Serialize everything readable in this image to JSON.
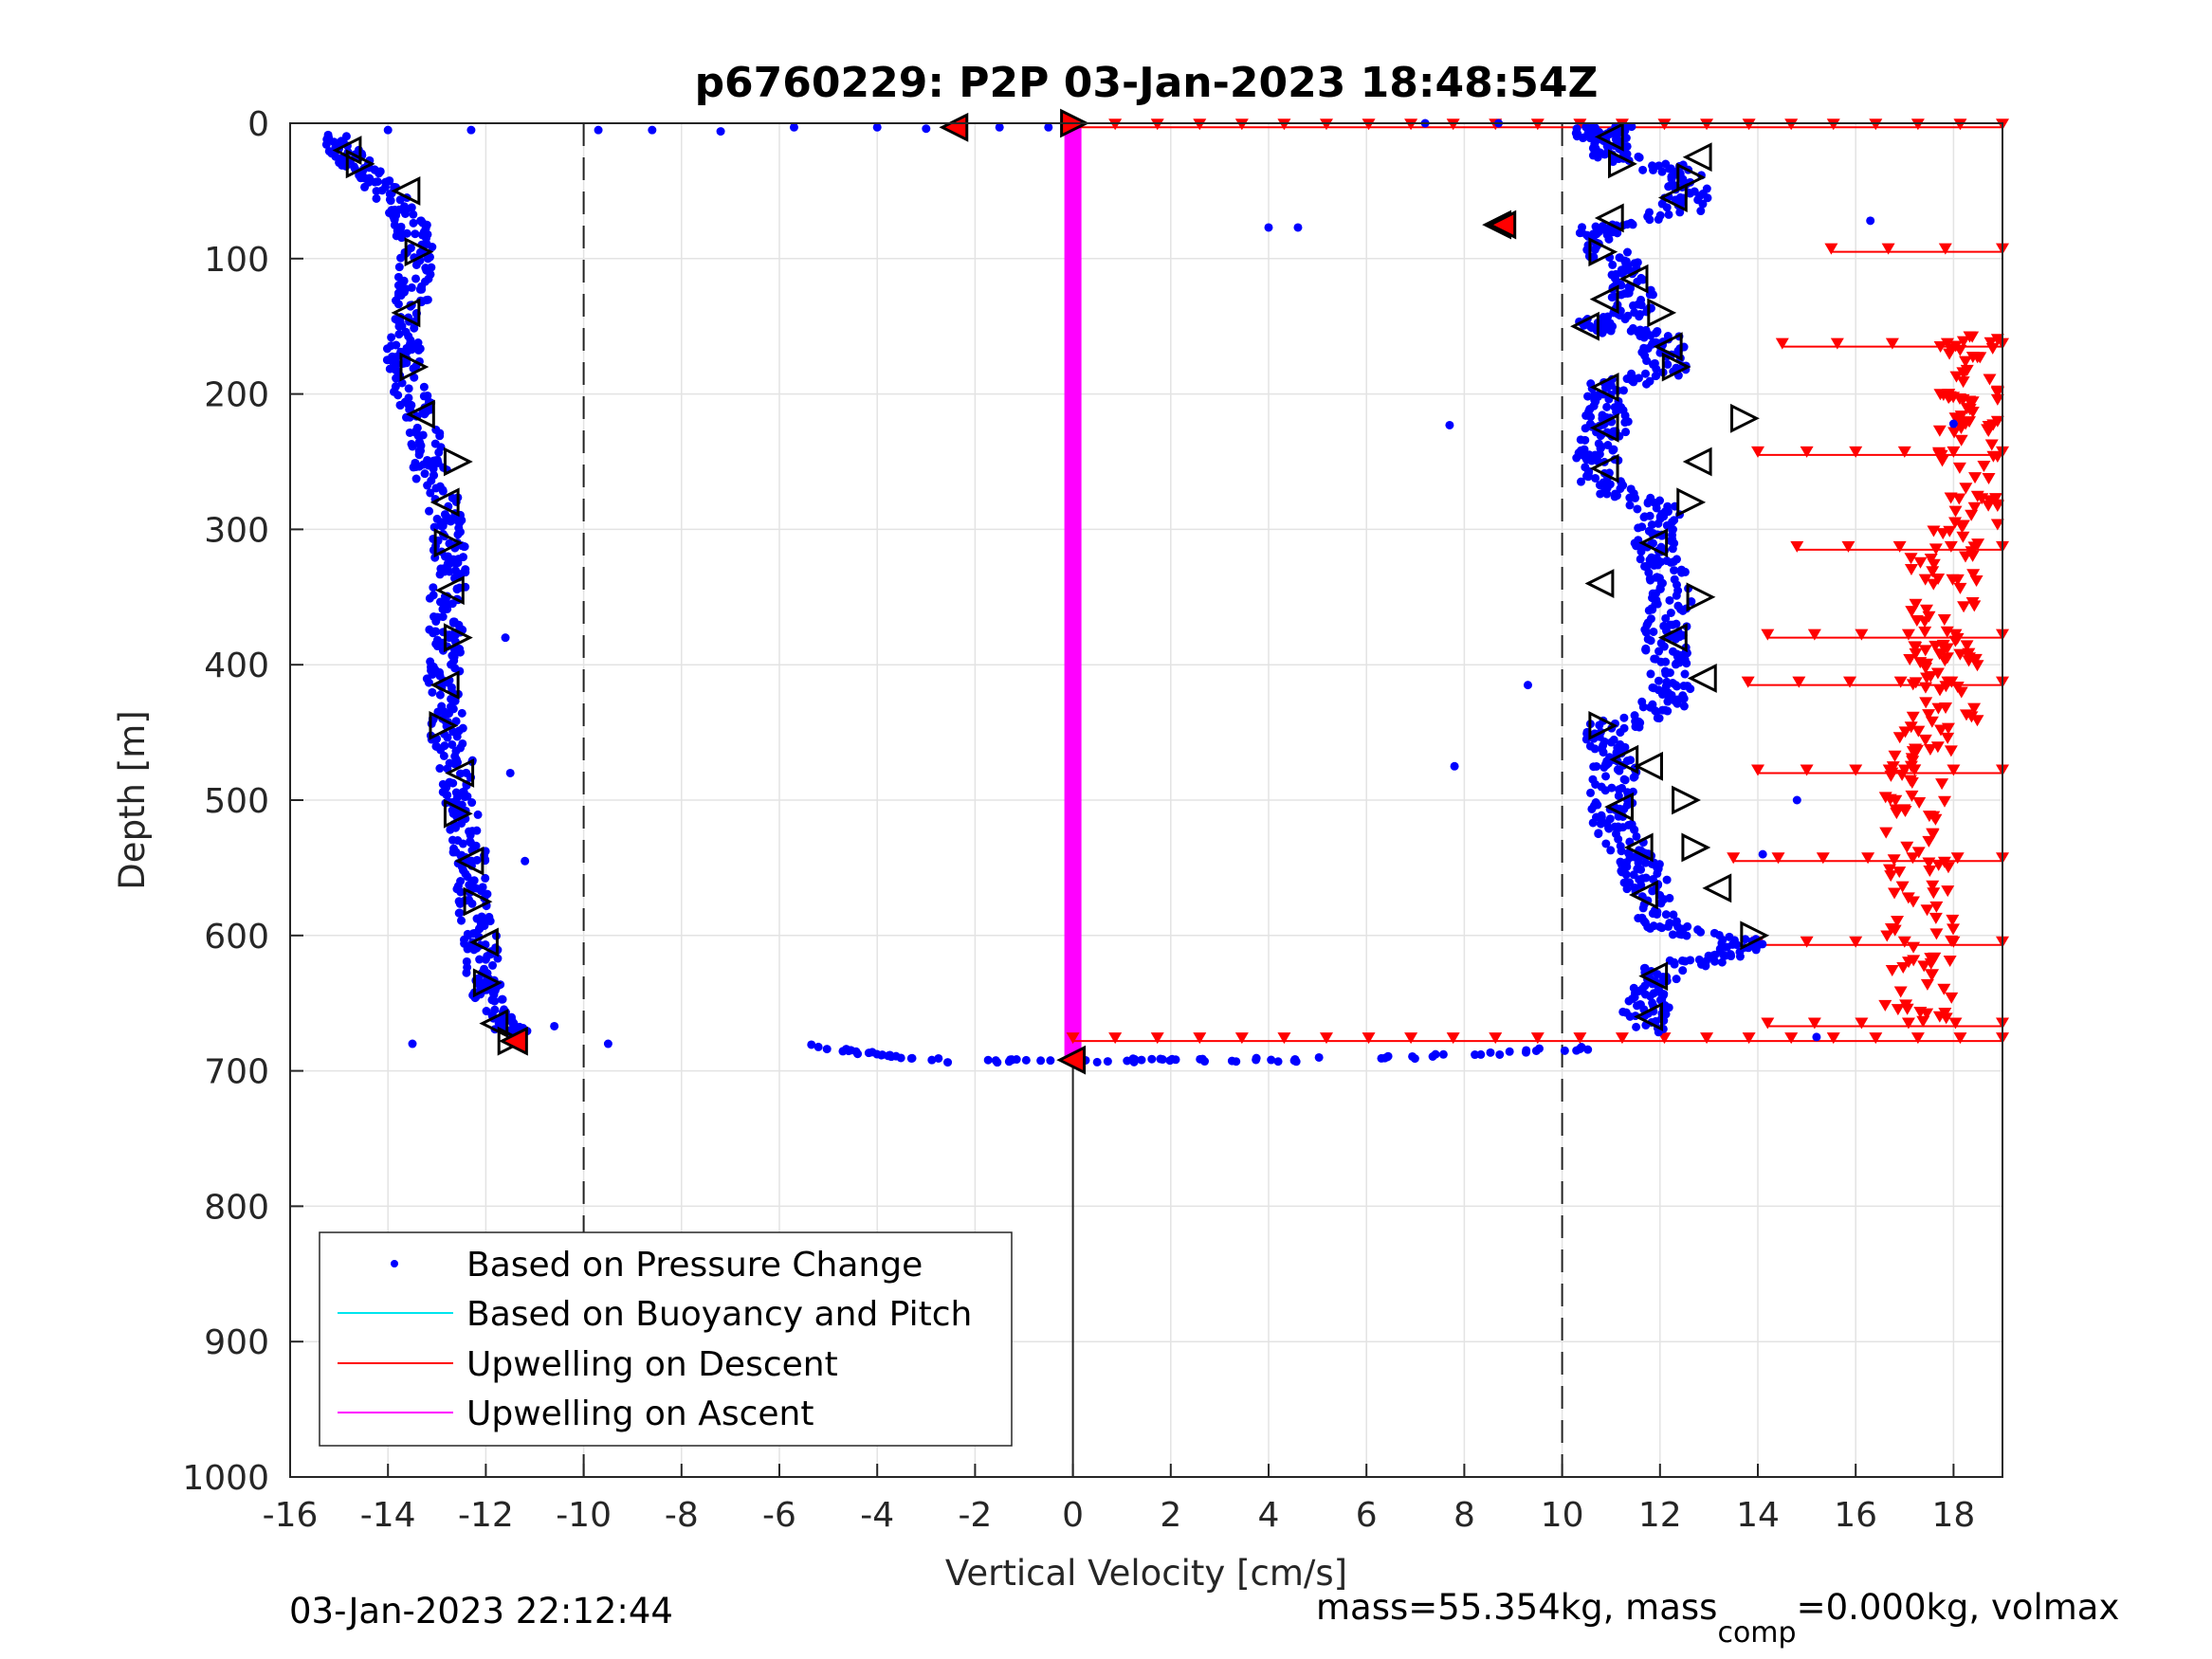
{
  "chart_data": {
    "type": "scatter",
    "title": "p6760229: P2P 03-Jan-2023 18:48:54Z",
    "xlabel": "Vertical Velocity [cm/s]",
    "ylabel": "Depth [m]",
    "xlim": [
      -16,
      19
    ],
    "ylim": [
      0,
      1000
    ],
    "y_reversed": true,
    "grid": true,
    "legend_position": "bottom-left",
    "x_ticks": [
      "-16",
      "-14",
      "-12",
      "-10",
      "-8",
      "-6",
      "-4",
      "-2",
      "0",
      "2",
      "4",
      "6",
      "8",
      "10",
      "12",
      "14",
      "16",
      "18"
    ],
    "y_ticks": [
      "0",
      "100",
      "200",
      "300",
      "400",
      "500",
      "600",
      "700",
      "800",
      "900",
      "1000"
    ],
    "reference_lines": {
      "dashed_x": [
        -10,
        10
      ],
      "solid_x": [
        0
      ],
      "solid_x_depth_range": [
        690,
        1000
      ]
    },
    "legend": [
      {
        "label": "Based on Pressure Change",
        "color": "#0000ff",
        "style": "dot"
      },
      {
        "label": "Based on Buoyancy and Pitch",
        "color": "#00e5ee",
        "style": "line"
      },
      {
        "label": "Upwelling on Descent",
        "color": "#ff0000",
        "style": "line"
      },
      {
        "label": "Upwelling on Ascent",
        "color": "#ff00ff",
        "style": "line"
      }
    ],
    "series": [
      {
        "name": "Based on Pressure Change",
        "color": "#0000ff",
        "descent_profile": [
          [
            -15.0,
            10
          ],
          [
            -14.8,
            25
          ],
          [
            -14.3,
            40
          ],
          [
            -13.8,
            60
          ],
          [
            -13.5,
            80
          ],
          [
            -13.4,
            100
          ],
          [
            -13.5,
            125
          ],
          [
            -13.6,
            150
          ],
          [
            -13.7,
            175
          ],
          [
            -13.5,
            200
          ],
          [
            -13.3,
            225
          ],
          [
            -13.2,
            250
          ],
          [
            -12.9,
            275
          ],
          [
            -12.8,
            300
          ],
          [
            -12.7,
            325
          ],
          [
            -12.8,
            350
          ],
          [
            -12.8,
            375
          ],
          [
            -12.9,
            400
          ],
          [
            -12.8,
            425
          ],
          [
            -12.8,
            450
          ],
          [
            -12.6,
            475
          ],
          [
            -12.6,
            500
          ],
          [
            -12.4,
            525
          ],
          [
            -12.3,
            550
          ],
          [
            -12.3,
            575
          ],
          [
            -12.1,
            600
          ],
          [
            -12.1,
            625
          ],
          [
            -12.0,
            640
          ],
          [
            -11.7,
            660
          ],
          [
            -11.4,
            672
          ]
        ],
        "ascent_profile": [
          [
            11.6,
            672
          ],
          [
            11.7,
            655
          ],
          [
            11.9,
            640
          ],
          [
            12.0,
            625
          ],
          [
            13.5,
            615
          ],
          [
            13.7,
            605
          ],
          [
            12.1,
            595
          ],
          [
            11.8,
            580
          ],
          [
            11.7,
            560
          ],
          [
            11.5,
            545
          ],
          [
            11.2,
            530
          ],
          [
            11.0,
            515
          ],
          [
            11.0,
            500
          ],
          [
            11.1,
            480
          ],
          [
            10.9,
            465
          ],
          [
            10.7,
            450
          ],
          [
            11.9,
            435
          ],
          [
            12.3,
            420
          ],
          [
            12.2,
            400
          ],
          [
            12.1,
            385
          ],
          [
            12.1,
            370
          ],
          [
            12.3,
            350
          ],
          [
            12.1,
            330
          ],
          [
            11.8,
            315
          ],
          [
            12.0,
            300
          ],
          [
            12.0,
            285
          ],
          [
            10.8,
            270
          ],
          [
            10.8,
            255
          ],
          [
            10.7,
            240
          ],
          [
            10.9,
            225
          ],
          [
            10.9,
            210
          ],
          [
            10.8,
            195
          ],
          [
            12.1,
            185
          ],
          [
            12.1,
            170
          ],
          [
            12.0,
            155
          ],
          [
            10.7,
            150
          ],
          [
            11.4,
            140
          ],
          [
            11.5,
            125
          ],
          [
            11.3,
            110
          ],
          [
            10.9,
            95
          ],
          [
            10.7,
            80
          ],
          [
            12.4,
            65
          ],
          [
            12.6,
            50
          ],
          [
            12.4,
            35
          ],
          [
            11.0,
            25
          ],
          [
            11.1,
            15
          ],
          [
            10.6,
            8
          ],
          [
            11.0,
            3
          ]
        ],
        "surface_transit": [
          [
            -9.7,
            5
          ],
          [
            -8.6,
            5
          ],
          [
            -7.2,
            6
          ],
          [
            -5.7,
            3
          ],
          [
            -4.0,
            3
          ],
          [
            -3.0,
            4
          ],
          [
            -1.5,
            3
          ],
          [
            -0.5,
            3
          ],
          [
            7.2,
            0
          ],
          [
            8.7,
            0
          ]
        ],
        "bottom_transit": [
          [
            -5.4,
            682
          ],
          [
            -4.5,
            686
          ],
          [
            -3.5,
            690
          ],
          [
            -2.2,
            693
          ],
          [
            -1.0,
            693
          ],
          [
            0.6,
            693
          ],
          [
            2.0,
            692
          ],
          [
            4.0,
            692
          ],
          [
            6.0,
            691
          ],
          [
            8.0,
            688
          ],
          [
            9.5,
            685
          ],
          [
            10.5,
            683
          ]
        ],
        "outliers": [
          [
            -14.0,
            5
          ],
          [
            -12.3,
            5
          ],
          [
            -11.6,
            380
          ],
          [
            -11.2,
            545
          ],
          [
            -11.5,
            480
          ],
          [
            -10.6,
            667
          ],
          [
            -9.5,
            680
          ],
          [
            -13.5,
            680
          ],
          [
            4.0,
            77
          ],
          [
            4.6,
            77
          ],
          [
            7.7,
            223
          ],
          [
            7.8,
            475
          ],
          [
            9.3,
            415
          ],
          [
            14.8,
            500
          ],
          [
            14.1,
            540
          ],
          [
            16.3,
            72
          ],
          [
            18.0,
            222
          ],
          [
            15.2,
            675
          ]
        ],
        "markers_descent": [
          [
            -14.8,
            20
          ],
          [
            -14.6,
            30
          ],
          [
            -13.6,
            50
          ],
          [
            -13.4,
            95
          ],
          [
            -13.6,
            140
          ],
          [
            -13.5,
            180
          ],
          [
            -13.3,
            215
          ],
          [
            -12.6,
            250
          ],
          [
            -12.8,
            280
          ],
          [
            -12.8,
            310
          ],
          [
            -12.7,
            345
          ],
          [
            -12.6,
            380
          ],
          [
            -12.8,
            415
          ],
          [
            -12.9,
            445
          ],
          [
            -12.5,
            480
          ],
          [
            -12.6,
            510
          ],
          [
            -12.3,
            545
          ],
          [
            -12.2,
            575
          ],
          [
            -12.0,
            605
          ],
          [
            -12.0,
            635
          ],
          [
            -11.8,
            665
          ],
          [
            -11.5,
            678
          ]
        ],
        "markers_ascent": [
          [
            11.0,
            10
          ],
          [
            11.2,
            30
          ],
          [
            12.8,
            25
          ],
          [
            12.3,
            55
          ],
          [
            12.6,
            40
          ],
          [
            11.0,
            70
          ],
          [
            8.7,
            75
          ],
          [
            10.8,
            95
          ],
          [
            11.5,
            115
          ],
          [
            10.9,
            130
          ],
          [
            12.0,
            140
          ],
          [
            10.5,
            150
          ],
          [
            12.2,
            165
          ],
          [
            12.3,
            180
          ],
          [
            10.9,
            195
          ],
          [
            10.9,
            225
          ],
          [
            13.7,
            218
          ],
          [
            10.9,
            255
          ],
          [
            12.8,
            250
          ],
          [
            12.6,
            280
          ],
          [
            11.9,
            310
          ],
          [
            10.8,
            340
          ],
          [
            12.8,
            350
          ],
          [
            12.3,
            380
          ],
          [
            12.9,
            410
          ],
          [
            10.8,
            445
          ],
          [
            11.3,
            470
          ],
          [
            11.8,
            475
          ],
          [
            12.5,
            500
          ],
          [
            11.2,
            505
          ],
          [
            11.6,
            535
          ],
          [
            12.7,
            535
          ],
          [
            11.7,
            570
          ],
          [
            13.2,
            565
          ],
          [
            13.9,
            600
          ],
          [
            11.9,
            630
          ],
          [
            11.8,
            660
          ]
        ],
        "markers_red": [
          [
            -2.4,
            3
          ],
          [
            0.0,
            0
          ],
          [
            8.8,
            75
          ],
          [
            -11.4,
            678
          ],
          [
            0.0,
            692
          ]
        ]
      },
      {
        "name": "Upwelling on Descent",
        "color": "#ff0000",
        "depths": [
          3,
          95,
          165,
          245,
          315,
          380,
          415,
          480,
          545,
          607,
          667,
          678
        ],
        "start_x": [
          0,
          15.5,
          14.5,
          14,
          14.8,
          14.2,
          13.8,
          14,
          13.5,
          14,
          14.2,
          0
        ],
        "end_x": [
          19,
          19,
          19,
          19,
          19,
          19,
          19,
          19,
          19,
          19,
          19,
          19
        ]
      },
      {
        "name": "Upwelling on Ascent",
        "color": "#ff00ff",
        "x": [
          0,
          0
        ],
        "y": [
          3,
          690
        ]
      }
    ],
    "footer_left": "03-Jan-2023 22:12:44",
    "footer_right_main": "mass=55.354kg, mass",
    "footer_right_sub": "comp",
    "footer_right_tail": "=0.000kg, volmax"
  }
}
